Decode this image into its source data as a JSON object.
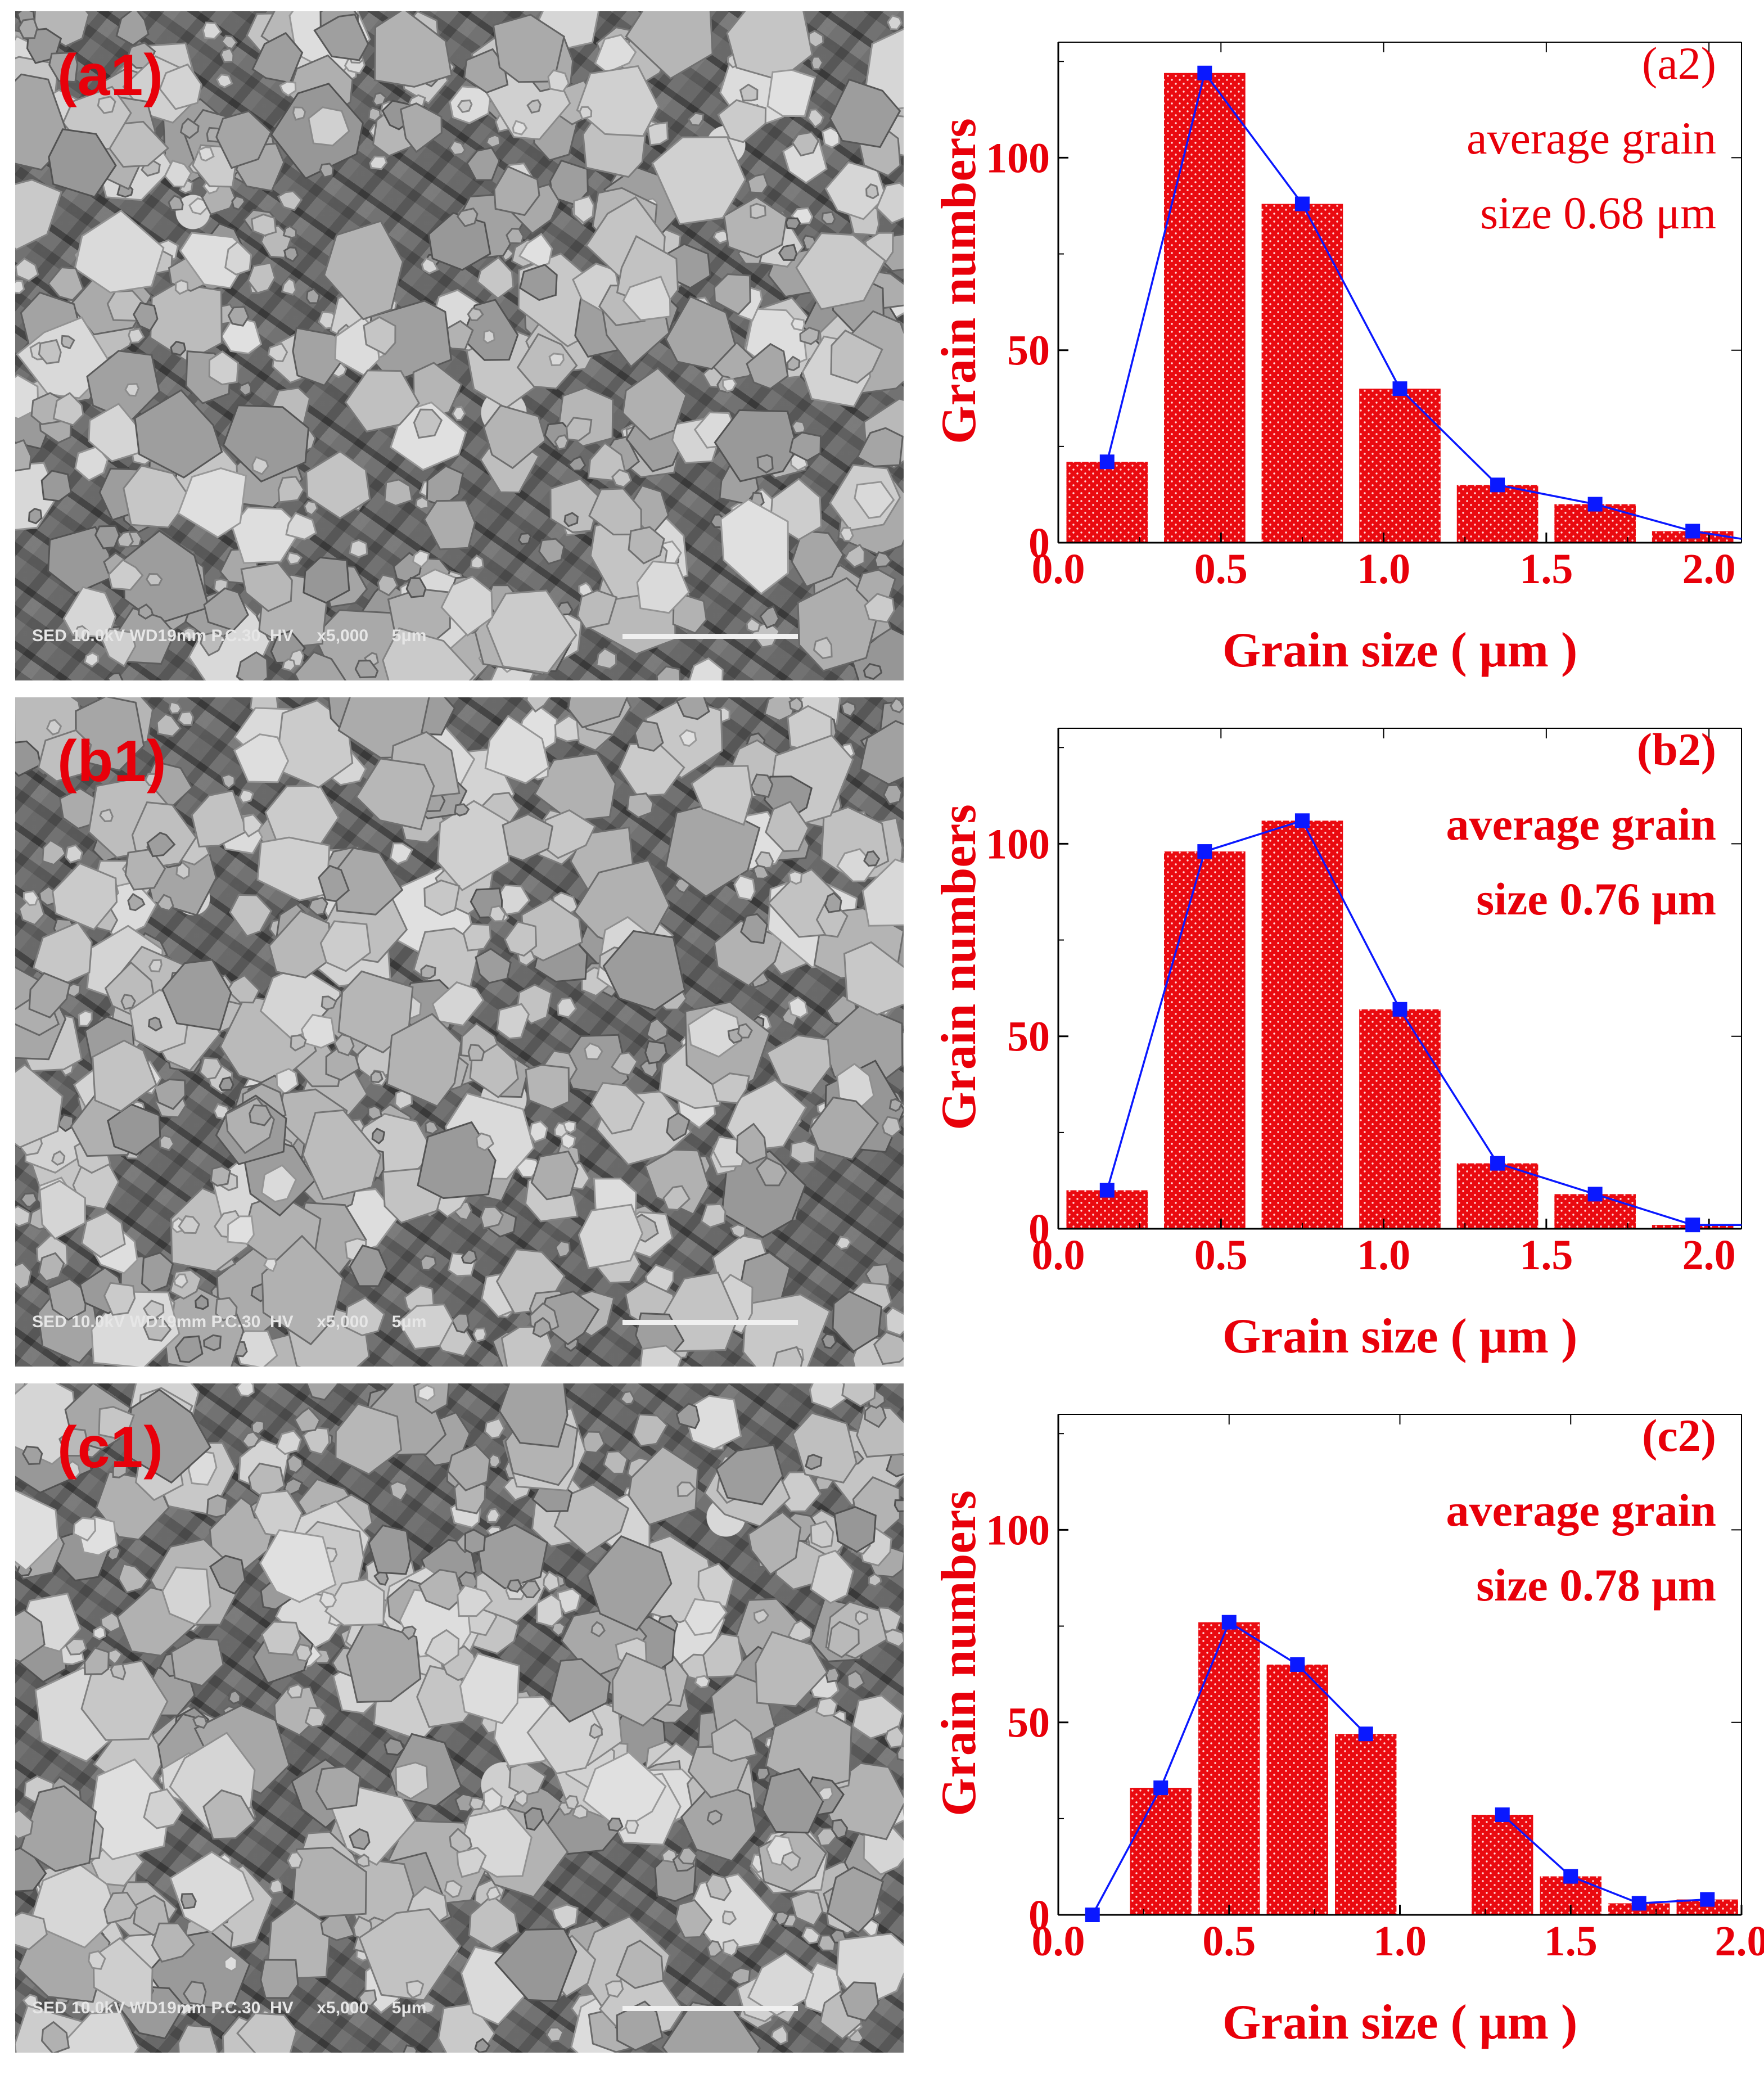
{
  "panels": [
    {
      "sem": {
        "label": "(a1)",
        "info": "SED 10.0kV WD19mm P.C.30  HV     x5,000     5μm"
      },
      "chart_data": {
        "type": "bar",
        "xlabel": "Grain size ( μm )",
        "ylabel": "Grain numbers",
        "xlim": [
          0.0,
          2.1
        ],
        "ylim": [
          0,
          130
        ],
        "xticks": [
          "0.0",
          "0.5",
          "1.0",
          "1.5",
          "2.0"
        ],
        "yticks": [
          "0",
          "50",
          "100"
        ],
        "annotation": [
          "(a2)",
          "average grain",
          "size 0.68 μm"
        ],
        "annotation_bold": false,
        "bar_width": 0.25,
        "bars": {
          "x": [
            0.15,
            0.45,
            0.75,
            1.05,
            1.35,
            1.65,
            1.95
          ],
          "values": [
            21,
            122,
            88,
            40,
            15,
            10,
            3
          ]
        },
        "line": {
          "x": [
            0.15,
            0.45,
            0.75,
            1.05,
            1.35,
            1.65,
            1.95,
            2.1
          ],
          "values": [
            21,
            122,
            88,
            40,
            15,
            10,
            3,
            1
          ]
        }
      }
    },
    {
      "sem": {
        "label": "(b1)",
        "info": "SED 10.0kV WD19mm P.C.30  HV     x5,000     5μm"
      },
      "chart_data": {
        "type": "bar",
        "xlabel": "Grain size ( μm )",
        "ylabel": "Grain numbers",
        "xlim": [
          0.0,
          2.1
        ],
        "ylim": [
          0,
          130
        ],
        "xticks": [
          "0.0",
          "0.5",
          "1.0",
          "1.5",
          "2.0"
        ],
        "yticks": [
          "0",
          "50",
          "100"
        ],
        "annotation": [
          "(b2)",
          "average grain",
          "size 0.76 μm"
        ],
        "annotation_bold": true,
        "bar_width": 0.25,
        "bars": {
          "x": [
            0.15,
            0.45,
            0.75,
            1.05,
            1.35,
            1.65,
            1.95
          ],
          "values": [
            10,
            98,
            106,
            57,
            17,
            9,
            1
          ]
        },
        "line": {
          "x": [
            0.15,
            0.45,
            0.75,
            1.05,
            1.35,
            1.65,
            1.95,
            2.1
          ],
          "values": [
            10,
            98,
            106,
            57,
            17,
            9,
            1,
            1
          ]
        }
      }
    },
    {
      "sem": {
        "label": "(c1)",
        "info": "SED 10.0kV WD19mm P.C.30  HV     x5,000     5μm"
      },
      "chart_data": {
        "type": "bar",
        "xlabel": "Grain size ( μm )",
        "ylabel": "Grain numbers",
        "xlim": [
          0.0,
          2.0
        ],
        "ylim": [
          0,
          130
        ],
        "xticks": [
          "0.0",
          "0.5",
          "1.0",
          "1.5",
          "2.0"
        ],
        "yticks": [
          "0",
          "50",
          "100"
        ],
        "annotation": [
          "(c2)",
          "average grain",
          "size 0.78 μm"
        ],
        "annotation_bold": true,
        "bar_width": 0.18,
        "bars": {
          "x": [
            0.3,
            0.5,
            0.7,
            0.9,
            1.3,
            1.5,
            1.7,
            1.9
          ],
          "values": [
            33,
            76,
            65,
            47,
            26,
            10,
            3,
            4
          ]
        },
        "line_segments": [
          {
            "x": [
              0.1,
              0.3,
              0.5,
              0.7,
              0.9
            ],
            "values": [
              0,
              33,
              76,
              65,
              47
            ]
          },
          {
            "x": [
              1.3,
              1.5,
              1.7,
              1.9
            ],
            "values": [
              26,
              10,
              3,
              4
            ]
          }
        ]
      }
    }
  ]
}
